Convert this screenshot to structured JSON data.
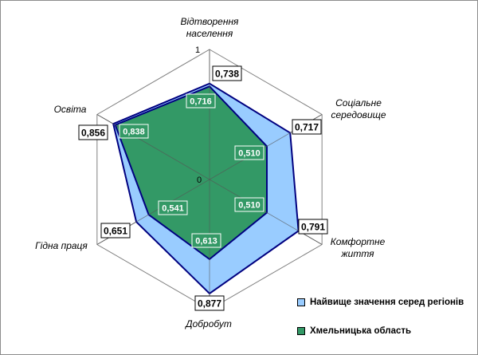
{
  "chart_data": {
    "type": "radar",
    "axes": [
      "Відтворення населення",
      "Соціальне середовище",
      "Комфортне життя",
      "Добробут",
      "Гідна праця",
      "Освіта"
    ],
    "axis_label_lines": [
      [
        "Відтворення",
        "населення"
      ],
      [
        "Соціальне",
        "середовище"
      ],
      [
        "Комфортне",
        "життя"
      ],
      [
        "Добробут"
      ],
      [
        "Гідна праця"
      ],
      [
        "Освіта"
      ]
    ],
    "scale_min_label": "0",
    "scale_max_label": "1",
    "rlim": [
      0,
      1
    ],
    "grid_levels": [
      0.2,
      0.4,
      0.6,
      0.8,
      1.0
    ],
    "series": [
      {
        "name": "Найвище значення серед регіонів",
        "values": [
          0.738,
          0.717,
          0.791,
          0.877,
          0.651,
          0.856
        ],
        "labels": [
          "0,738",
          "0,717",
          "0,791",
          "0,877",
          "0,651",
          "0,856"
        ],
        "fill": "#99ccff",
        "stroke": "#000080"
      },
      {
        "name": "Хмельницька область",
        "values": [
          0.716,
          0.51,
          0.51,
          0.613,
          0.541,
          0.838
        ],
        "labels": [
          "0,716",
          "0,510",
          "0,510",
          "0,613",
          "0,541",
          "0,838"
        ],
        "fill": "#339966",
        "stroke": "#000080"
      }
    ],
    "legend_position": "bottom-right"
  }
}
